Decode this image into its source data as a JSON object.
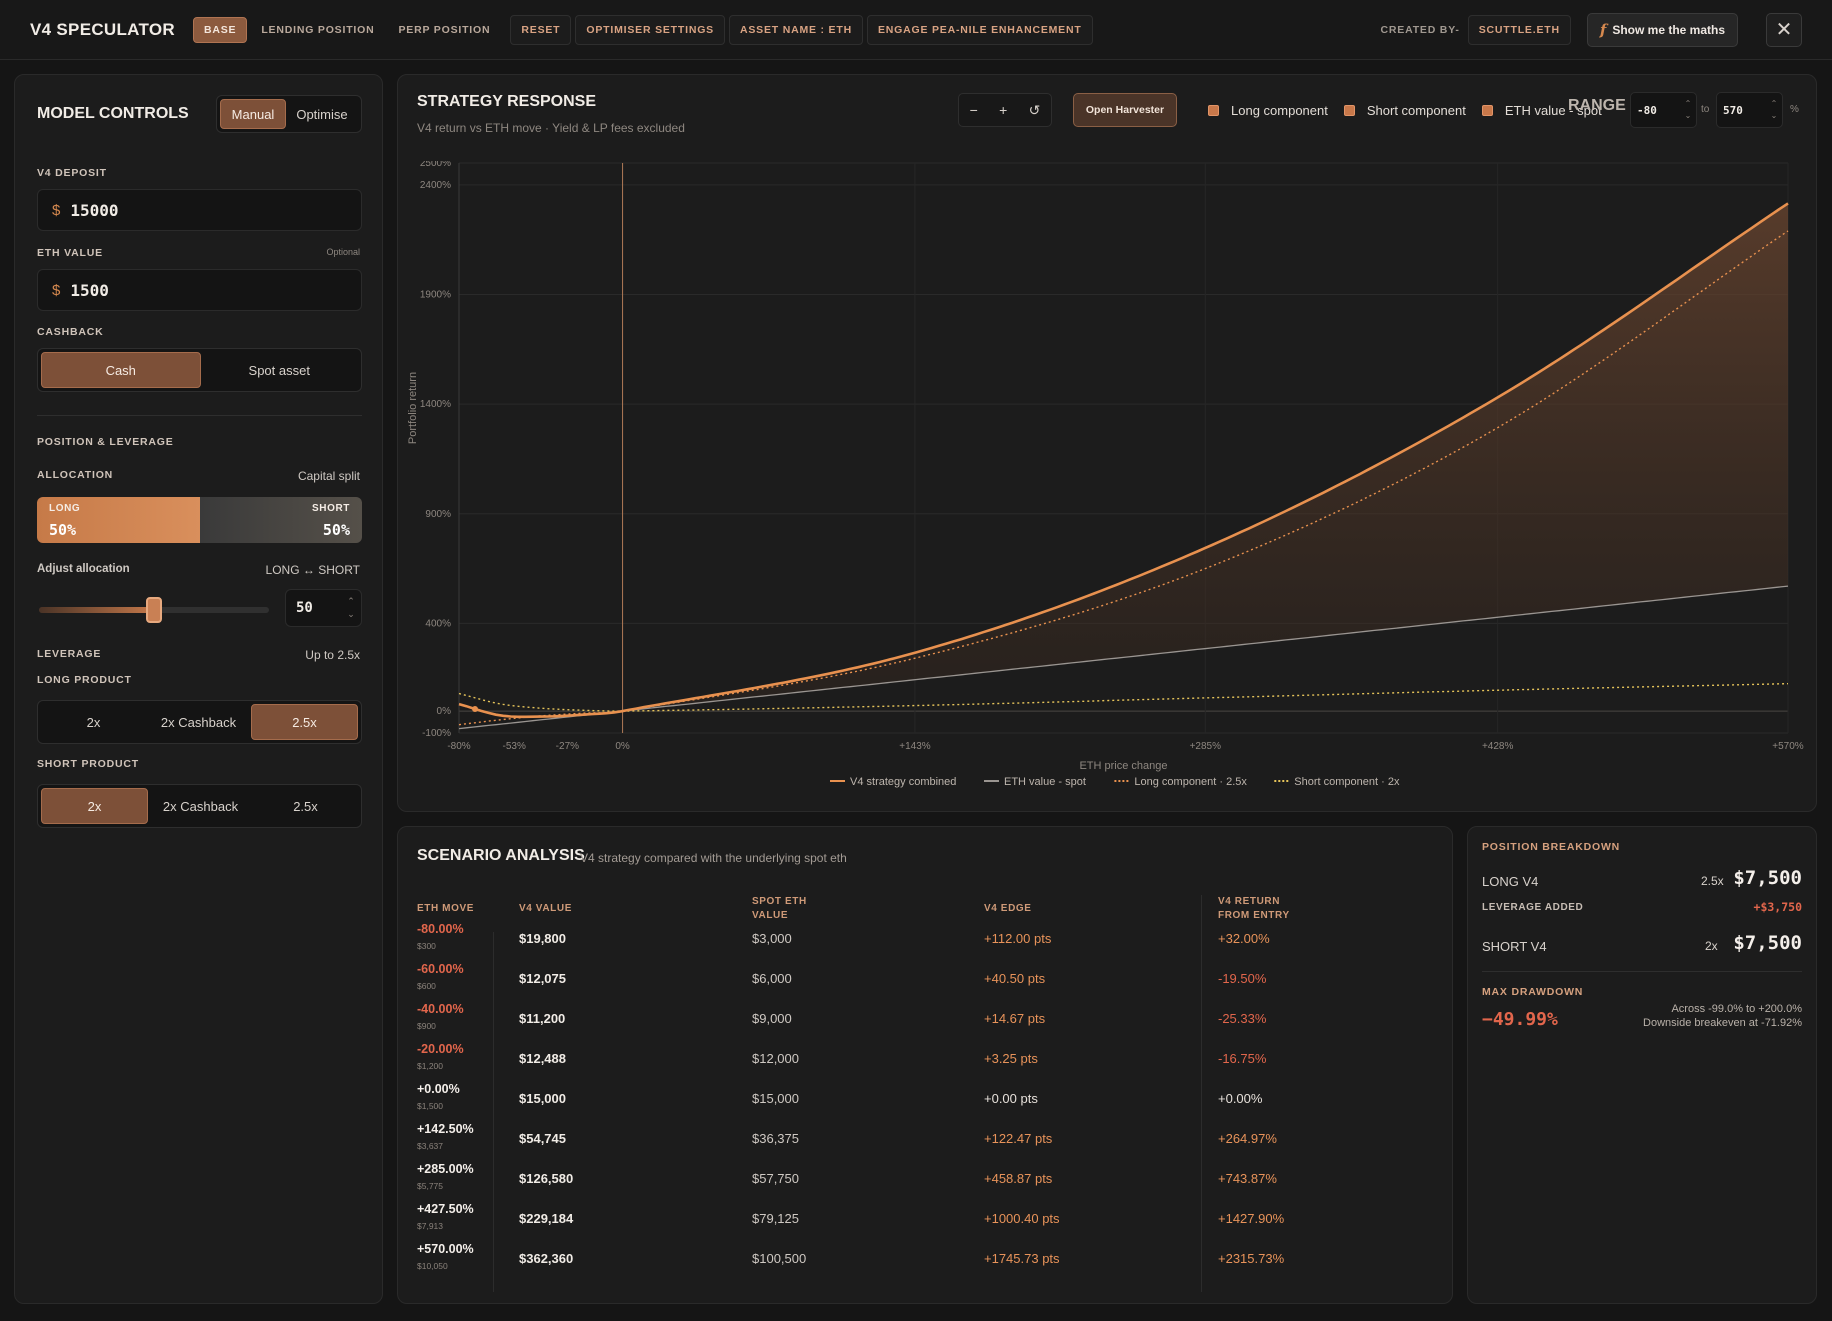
{
  "topbar": {
    "title": "V4 SPECULATOR",
    "tabs": [
      "BASE",
      "LENDING POSITION",
      "PERP POSITION"
    ],
    "reset": "RESET",
    "optimiser_settings": "OPTIMISER SETTINGS",
    "asset_name": "ASSET NAME : ETH",
    "engage": "ENGAGE PEA-NILE ENHANCEMENT",
    "created_by": "CREATED BY-",
    "creator": "SCUTTLE.ETH",
    "maths_icon": "f",
    "maths": "Show me the maths",
    "close": "✕"
  },
  "controls": {
    "title": "MODEL CONTROLS",
    "mode_manual": "Manual",
    "mode_optimise": "Optimise",
    "deposit_label": "V4 DEPOSIT",
    "deposit_currency": "$",
    "deposit_value": "15000",
    "eth_label": "ETH VALUE",
    "eth_optional": "Optional",
    "eth_currency": "$",
    "eth_value": "1500",
    "cashback_label": "CASHBACK",
    "cashback_cash": "Cash",
    "cashback_spot": "Spot asset",
    "position_label": "POSITION & LEVERAGE",
    "allocation_label": "ALLOCATION",
    "capital_split": "Capital split",
    "long_tag": "LONG",
    "long_pct": "50%",
    "short_tag": "SHORT",
    "short_pct": "50%",
    "long_fraction": 0.5,
    "adjust_label": "Adjust allocation",
    "long_short": "LONG ↔ SHORT",
    "slider_value": "50",
    "slider_fraction": 0.5,
    "leverage_label": "LEVERAGE",
    "leverage_max": "Up to 2.5x",
    "long_product_label": "LONG PRODUCT",
    "long_products": [
      "2x",
      "2x Cashback",
      "2.5x"
    ],
    "short_product_label": "SHORT PRODUCT",
    "short_products": [
      "2x",
      "2x Cashback",
      "2.5x"
    ]
  },
  "chart_panel": {
    "title": "STRATEGY RESPONSE",
    "subtitle": "V4 return vs ETH move · Yield & LP fees excluded",
    "zoom_out": "−",
    "zoom_in": "+",
    "zoom_reset": "↺",
    "harvester": "Open Harvester",
    "legend": [
      "Long component",
      "Short component",
      "ETH value - spot"
    ],
    "range_label": "RANGE",
    "range_min": "-80",
    "range_to": "to",
    "range_max": "570",
    "range_unit": "%"
  },
  "chart_data": {
    "type": "line",
    "xlabel": "ETH price change",
    "ylabel": "Portfolio return",
    "xlim": [
      -80,
      570
    ],
    "ylim": [
      -100,
      2500
    ],
    "x_ticks": [
      "-80%",
      "-53%",
      "-27%",
      "0%",
      "+143%",
      "+285%",
      "+428%",
      "+570%"
    ],
    "x_tick_values": [
      -80,
      -53,
      -27,
      0,
      143,
      285,
      428,
      570
    ],
    "y_ticks": [
      "2500%",
      "2400%",
      "1900%",
      "1400%",
      "900%",
      "400%",
      "0%",
      "-100%"
    ],
    "y_tick_values": [
      2500,
      2400,
      1900,
      1400,
      900,
      400,
      0,
      -100
    ],
    "grid": true,
    "legend_position": "bottom",
    "series": [
      {
        "name": "V4 strategy combined",
        "color": "#e8914f",
        "style": "solid",
        "x": [
          -80,
          -60,
          -40,
          -20,
          0,
          142.5,
          285,
          427.5,
          570
        ],
        "y": [
          32.0,
          -19.5,
          -25.33,
          -16.75,
          0.0,
          264.97,
          743.87,
          1427.9,
          2315.73
        ]
      },
      {
        "name": "ETH value - spot",
        "color": "#9a9591",
        "style": "solid",
        "x": [
          -80,
          0,
          570
        ],
        "y": [
          -80,
          0,
          570
        ]
      },
      {
        "name": "Long component · 2.5x",
        "color": "#e8914f",
        "style": "dotted",
        "x": [
          -80,
          -60,
          -40,
          -20,
          0,
          142.5,
          285,
          427.5,
          570
        ],
        "y": [
          -62,
          -40,
          -22,
          -10,
          0,
          240,
          650,
          1290,
          2190
        ]
      },
      {
        "name": "Short component · 2x",
        "color": "#e6c45a",
        "style": "dotted",
        "x": [
          -80,
          -60,
          -40,
          -20,
          0,
          142.5,
          285,
          427.5,
          570
        ],
        "y": [
          80,
          33,
          13,
          4,
          0,
          25,
          60,
          95,
          125
        ]
      }
    ]
  },
  "scenario": {
    "title": "SCENARIO ANALYSIS",
    "subtitle": "V4 strategy compared with the underlying spot eth",
    "headers": {
      "move": "ETH MOVE",
      "v4": "V4 VALUE",
      "spot": "SPOT ETH\nVALUE",
      "edge": "V4 EDGE",
      "ret": "V4 RETURN\nFROM ENTRY"
    },
    "rows": [
      {
        "move": "-80.00%",
        "price": "$300",
        "v4": "$19,800",
        "spot": "$3,000",
        "edge": "+112.00 pts",
        "ret": "+32.00%",
        "move_tone": "neg",
        "edge_tone": "pos",
        "ret_tone": "pos"
      },
      {
        "move": "-60.00%",
        "price": "$600",
        "v4": "$12,075",
        "spot": "$6,000",
        "edge": "+40.50 pts",
        "ret": "-19.50%",
        "move_tone": "neg",
        "edge_tone": "pos",
        "ret_tone": "neg"
      },
      {
        "move": "-40.00%",
        "price": "$900",
        "v4": "$11,200",
        "spot": "$9,000",
        "edge": "+14.67 pts",
        "ret": "-25.33%",
        "move_tone": "neg",
        "edge_tone": "pos",
        "ret_tone": "neg"
      },
      {
        "move": "-20.00%",
        "price": "$1,200",
        "v4": "$12,488",
        "spot": "$12,000",
        "edge": "+3.25 pts",
        "ret": "-16.75%",
        "move_tone": "neg",
        "edge_tone": "pos",
        "ret_tone": "neg"
      },
      {
        "move": "+0.00%",
        "price": "$1,500",
        "v4": "$15,000",
        "spot": "$15,000",
        "edge": "+0.00 pts",
        "ret": "+0.00%",
        "move_tone": "white",
        "edge_tone": "neutral",
        "ret_tone": "neutral"
      },
      {
        "move": "+142.50%",
        "price": "$3,637",
        "v4": "$54,745",
        "spot": "$36,375",
        "edge": "+122.47 pts",
        "ret": "+264.97%",
        "move_tone": "white",
        "edge_tone": "pos",
        "ret_tone": "pos"
      },
      {
        "move": "+285.00%",
        "price": "$5,775",
        "v4": "$126,580",
        "spot": "$57,750",
        "edge": "+458.87 pts",
        "ret": "+743.87%",
        "move_tone": "white",
        "edge_tone": "pos",
        "ret_tone": "pos"
      },
      {
        "move": "+427.50%",
        "price": "$7,913",
        "v4": "$229,184",
        "spot": "$79,125",
        "edge": "+1000.40 pts",
        "ret": "+1427.90%",
        "move_tone": "white",
        "edge_tone": "pos",
        "ret_tone": "pos"
      },
      {
        "move": "+570.00%",
        "price": "$10,050",
        "v4": "$362,360",
        "spot": "$100,500",
        "edge": "+1745.73 pts",
        "ret": "+2315.73%",
        "move_tone": "white",
        "edge_tone": "pos",
        "ret_tone": "pos"
      }
    ]
  },
  "breakdown": {
    "title": "POSITION BREAKDOWN",
    "long_label": "LONG V4",
    "long_lev": "2.5x",
    "long_value": "$7,500",
    "lev_added_label": "LEVERAGE ADDED",
    "lev_added": "+$3,750",
    "short_label": "SHORT V4",
    "short_lev": "2x",
    "short_value": "$7,500",
    "dd_label": "MAX DRAWDOWN",
    "dd_value": "−49.99%",
    "dd_note1": "Across -99.0% to +200.0%",
    "dd_note2": "Downside breakeven at -71.92%"
  }
}
